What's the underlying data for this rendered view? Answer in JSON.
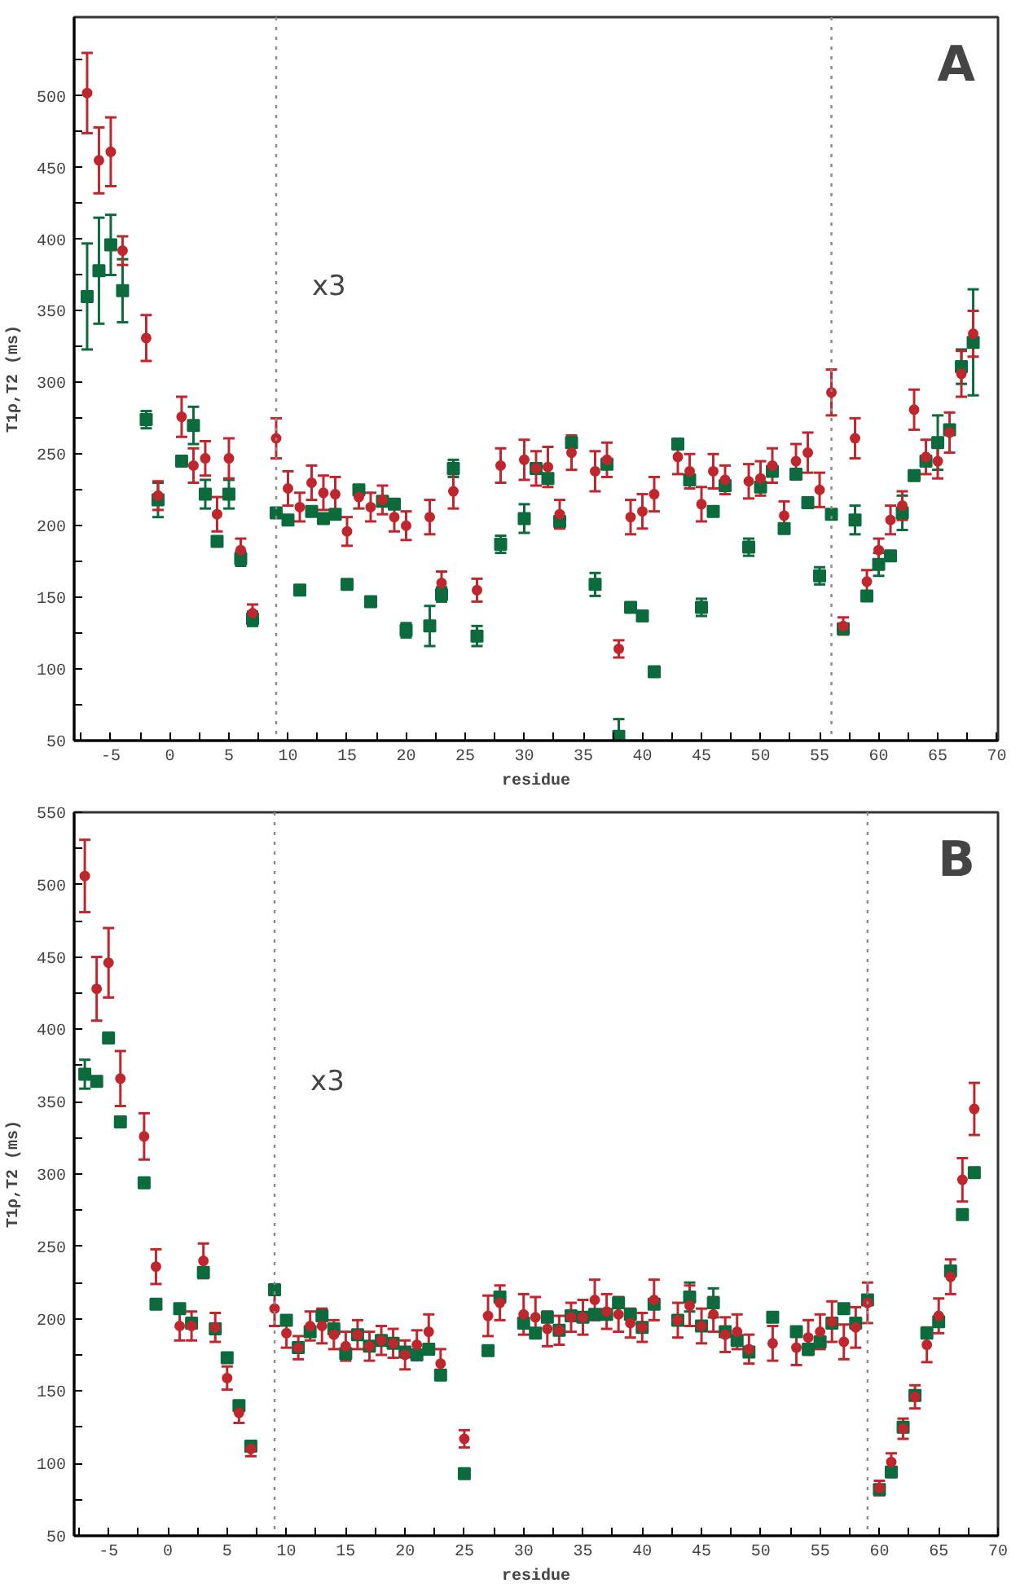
{
  "chart_data": [
    {
      "type": "scatter",
      "xlabel": "residue",
      "ylabel": "T1ρ,T2 (ms)",
      "annotations": [
        "A",
        "x3"
      ],
      "grid": false,
      "xlim": [
        -8.1,
        70.1
      ],
      "ylim": [
        50,
        555
      ],
      "xticks": [
        {
          "value": -7.5,
          "label": null
        },
        -5,
        {
          "value": -2.5,
          "label": null
        },
        0,
        {
          "value": 2.5,
          "label": null
        },
        5,
        {
          "value": 7.5,
          "label": null
        },
        10,
        {
          "value": 12.5,
          "label": null
        },
        15,
        {
          "value": 17.5,
          "label": null
        },
        20,
        {
          "value": 22.5,
          "label": null
        },
        25,
        {
          "value": 27.5,
          "label": null
        },
        30,
        {
          "value": 32.5,
          "label": null
        },
        35,
        {
          "value": 37.5,
          "label": null
        },
        40,
        {
          "value": 42.5,
          "label": null
        },
        45,
        {
          "value": 47.5,
          "label": null
        },
        50,
        {
          "value": 52.5,
          "label": null
        },
        55,
        {
          "value": 57.5,
          "label": null
        },
        60,
        {
          "value": 62.5,
          "label": null
        },
        65,
        {
          "value": 67.5,
          "label": null
        },
        70
      ],
      "yticks": [
        50,
        {
          "value": 75,
          "label": null
        },
        100,
        {
          "value": 125,
          "label": null
        },
        150,
        {
          "value": 175,
          "label": null
        },
        200,
        {
          "value": 225,
          "label": null
        },
        250,
        {
          "value": 275,
          "label": null
        },
        300,
        {
          "value": 325,
          "label": null
        },
        350,
        {
          "value": 375,
          "label": null
        },
        400,
        {
          "value": 425,
          "label": null
        },
        450,
        {
          "value": 475,
          "label": null
        },
        500,
        {
          "value": 525,
          "label": null
        }
      ],
      "ref_lines": [
        {
          "axis": "x",
          "value": 9,
          "color": "#8a8a8a",
          "line_style": "dotted"
        },
        {
          "axis": "x",
          "value": 56,
          "color": "#8a8a8a",
          "line_style": "dotted"
        }
      ],
      "series": [
        {
          "color": "#c0262d",
          "marker": "circle",
          "x": [
            -7,
            -6,
            -5,
            -4,
            -2,
            -1,
            1,
            2,
            3,
            4,
            5,
            6,
            7,
            9,
            10,
            11,
            12,
            13,
            14,
            15,
            16,
            17,
            18,
            19,
            20,
            22,
            23,
            24,
            26,
            28,
            30,
            31,
            32,
            33,
            34,
            36,
            37,
            38,
            39,
            40,
            41,
            43,
            44,
            45,
            46,
            47,
            49,
            50,
            51,
            52,
            53,
            54,
            55,
            56,
            57,
            58,
            59,
            60,
            61,
            62,
            63,
            64,
            65,
            66,
            67,
            68
          ],
          "values": [
            502,
            455,
            461,
            392,
            331,
            221,
            276,
            242,
            247,
            208,
            247,
            183,
            139,
            261,
            226,
            213,
            230,
            223,
            222,
            196,
            220,
            213,
            218,
            206,
            200,
            206,
            160,
            224,
            155,
            242,
            246,
            240,
            241,
            208,
            251,
            238,
            246,
            114,
            206,
            210,
            222,
            248,
            238,
            215,
            238,
            232,
            231,
            233,
            242,
            207,
            245,
            251,
            225,
            293,
            130,
            261,
            161,
            183,
            204,
            214,
            281,
            248,
            245,
            265,
            306,
            334
          ],
          "errors": [
            28,
            23,
            24,
            10,
            16,
            10,
            14,
            12,
            12,
            12,
            14,
            8,
            6,
            14,
            12,
            10,
            12,
            12,
            12,
            10,
            8,
            10,
            10,
            10,
            10,
            12,
            8,
            12,
            8,
            12,
            14,
            12,
            14,
            10,
            12,
            14,
            12,
            6,
            12,
            12,
            12,
            12,
            12,
            12,
            12,
            10,
            12,
            12,
            12,
            10,
            12,
            14,
            12,
            16,
            6,
            14,
            8,
            8,
            10,
            10,
            14,
            12,
            12,
            14,
            16,
            16
          ]
        },
        {
          "color": "#0b6b3c",
          "marker": "square",
          "x": [
            -7,
            -6,
            -5,
            -4,
            -2,
            -1,
            1,
            2,
            3,
            4,
            5,
            6,
            7,
            9,
            10,
            11,
            12,
            13,
            14,
            15,
            16,
            17,
            18,
            19,
            20,
            22,
            23,
            24,
            26,
            28,
            30,
            31,
            32,
            33,
            34,
            36,
            37,
            38,
            39,
            40,
            41,
            43,
            44,
            45,
            46,
            47,
            49,
            50,
            51,
            52,
            53,
            54,
            55,
            56,
            57,
            58,
            59,
            60,
            61,
            62,
            63,
            64,
            65,
            66,
            67,
            68
          ],
          "values": [
            360,
            378,
            396,
            364,
            274,
            218,
            245,
            270,
            222,
            189,
            222,
            177,
            135,
            209,
            204,
            155,
            210,
            205,
            208,
            159,
            225,
            147,
            217,
            215,
            127,
            130,
            152,
            240,
            123,
            187,
            205,
            240,
            233,
            203,
            258,
            159,
            243,
            53,
            143,
            137,
            98,
            257,
            232,
            143,
            210,
            228,
            185,
            227,
            238,
            198,
            236,
            216,
            165,
            208,
            128,
            204,
            151,
            173,
            179,
            209,
            235,
            245,
            258,
            267,
            311,
            328
          ],
          "errors": [
            37,
            37,
            21,
            22,
            6,
            12,
            null,
            13,
            10,
            null,
            10,
            5,
            5,
            null,
            null,
            null,
            null,
            null,
            null,
            null,
            null,
            null,
            null,
            null,
            5,
            14,
            5,
            6,
            7,
            6,
            10,
            null,
            null,
            null,
            null,
            8,
            null,
            [
              53,
              65
            ],
            null,
            null,
            null,
            null,
            null,
            6,
            null,
            null,
            6,
            null,
            null,
            null,
            null,
            null,
            6,
            null,
            null,
            10,
            null,
            8,
            null,
            12,
            null,
            null,
            19,
            null,
            12,
            37
          ]
        }
      ]
    },
    {
      "type": "scatter",
      "xlabel": "residue",
      "ylabel": "T1ρ,T2 (ms)",
      "annotations": [
        "B",
        "x3"
      ],
      "grid": false,
      "xlim": [
        -7.9,
        70
      ],
      "ylim": [
        50,
        550
      ],
      "xticks": [
        {
          "value": -7.5,
          "label": null
        },
        -5,
        {
          "value": -2.5,
          "label": null
        },
        0,
        {
          "value": 2.5,
          "label": null
        },
        5,
        {
          "value": 7.5,
          "label": null
        },
        10,
        {
          "value": 12.5,
          "label": null
        },
        15,
        {
          "value": 17.5,
          "label": null
        },
        20,
        {
          "value": 22.5,
          "label": null
        },
        25,
        {
          "value": 27.5,
          "label": null
        },
        30,
        {
          "value": 32.5,
          "label": null
        },
        35,
        {
          "value": 37.5,
          "label": null
        },
        40,
        {
          "value": 42.5,
          "label": null
        },
        45,
        {
          "value": 47.5,
          "label": null
        },
        50,
        {
          "value": 52.5,
          "label": null
        },
        55,
        {
          "value": 57.5,
          "label": null
        },
        60,
        {
          "value": 62.5,
          "label": null
        },
        65,
        {
          "value": 67.5,
          "label": null
        },
        70
      ],
      "yticks": [
        50,
        {
          "value": 75,
          "label": null
        },
        100,
        {
          "value": 125,
          "label": null
        },
        150,
        {
          "value": 175,
          "label": null
        },
        200,
        {
          "value": 225,
          "label": null
        },
        250,
        {
          "value": 275,
          "label": null
        },
        300,
        {
          "value": 325,
          "label": null
        },
        350,
        {
          "value": 375,
          "label": null
        },
        400,
        {
          "value": 425,
          "label": null
        },
        450,
        {
          "value": 475,
          "label": null
        },
        500,
        {
          "value": 525,
          "label": null
        },
        550
      ],
      "ref_lines": [
        {
          "axis": "x",
          "value": 9,
          "color": "#8a8a8a",
          "line_style": "dotted"
        },
        {
          "axis": "x",
          "value": 59,
          "color": "#8a8a8a",
          "line_style": "dotted"
        }
      ],
      "series": [
        {
          "color": "#c0262d",
          "marker": "circle",
          "x": [
            -7,
            -6,
            -5,
            -4,
            -2,
            -1,
            1,
            2,
            3,
            4,
            5,
            6,
            7,
            9,
            10,
            11,
            12,
            13,
            14,
            15,
            16,
            17,
            18,
            19,
            20,
            21,
            22,
            23,
            25,
            27,
            28,
            30,
            31,
            32,
            33,
            34,
            35,
            36,
            37,
            38,
            39,
            40,
            41,
            43,
            44,
            45,
            46,
            47,
            48,
            49,
            51,
            53,
            54,
            55,
            56,
            57,
            58,
            59,
            60,
            61,
            62,
            63,
            64,
            65,
            66,
            67,
            68
          ],
          "values": [
            506,
            428,
            446,
            366,
            326,
            236,
            195,
            195,
            240,
            194,
            159,
            135,
            110,
            207,
            190,
            180,
            195,
            195,
            189,
            181,
            189,
            181,
            185,
            183,
            175,
            182,
            191,
            169,
            117,
            202,
            211,
            203,
            201,
            193,
            192,
            201,
            201,
            213,
            205,
            203,
            197,
            194,
            213,
            199,
            209,
            195,
            203,
            189,
            191,
            179,
            183,
            180,
            187,
            191,
            198,
            184,
            194,
            211,
            83,
            101,
            124,
            146,
            182,
            202,
            229,
            296,
            345
          ],
          "errors": [
            25,
            22,
            24,
            19,
            16,
            12,
            10,
            10,
            12,
            10,
            8,
            7,
            5,
            12,
            10,
            8,
            10,
            12,
            10,
            10,
            10,
            10,
            10,
            10,
            10,
            10,
            12,
            10,
            6,
            14,
            12,
            14,
            14,
            12,
            10,
            10,
            12,
            14,
            12,
            12,
            10,
            10,
            14,
            12,
            14,
            12,
            12,
            12,
            12,
            10,
            12,
            12,
            12,
            12,
            14,
            12,
            14,
            14,
            5,
            6,
            7,
            8,
            12,
            12,
            12,
            15,
            18
          ]
        },
        {
          "color": "#0b6b3c",
          "marker": "square",
          "x": [
            -7,
            -6,
            -5,
            -4,
            -2,
            -1,
            1,
            2,
            3,
            4,
            5,
            6,
            7,
            9,
            10,
            11,
            12,
            13,
            14,
            15,
            16,
            17,
            18,
            19,
            20,
            21,
            22,
            23,
            25,
            27,
            28,
            30,
            31,
            32,
            33,
            34,
            35,
            36,
            37,
            38,
            39,
            40,
            41,
            43,
            44,
            45,
            46,
            47,
            48,
            49,
            51,
            53,
            54,
            55,
            56,
            57,
            58,
            59,
            60,
            61,
            62,
            63,
            64,
            65,
            66,
            67,
            68
          ],
          "values": [
            369,
            364,
            394,
            336,
            294,
            210,
            207,
            197,
            232,
            193,
            173,
            140,
            112,
            220,
            199,
            180,
            191,
            202,
            193,
            176,
            189,
            181,
            185,
            183,
            177,
            175,
            179,
            161,
            93,
            178,
            215,
            197,
            190,
            201,
            192,
            202,
            201,
            203,
            203,
            211,
            203,
            194,
            210,
            199,
            215,
            195,
            211,
            191,
            185,
            177,
            201,
            191,
            179,
            184,
            197,
            207,
            197,
            213,
            82,
            94,
            125,
            147,
            190,
            198,
            233,
            272,
            301
          ],
          "errors": [
            10,
            null,
            null,
            null,
            null,
            null,
            null,
            null,
            null,
            null,
            null,
            null,
            null,
            null,
            null,
            null,
            null,
            null,
            null,
            null,
            null,
            null,
            null,
            null,
            null,
            null,
            null,
            null,
            null,
            null,
            null,
            null,
            null,
            null,
            null,
            null,
            null,
            null,
            null,
            null,
            null,
            null,
            null,
            null,
            10,
            null,
            10,
            null,
            null,
            null,
            null,
            null,
            null,
            null,
            null,
            null,
            null,
            null,
            null,
            null,
            null,
            null,
            null,
            null,
            null,
            null,
            null
          ]
        }
      ]
    }
  ]
}
